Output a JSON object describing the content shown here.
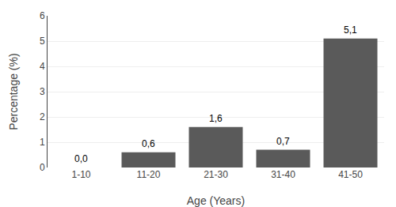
{
  "chart_data": {
    "type": "bar",
    "categories": [
      "1-10",
      "11-20",
      "21-30",
      "31-40",
      "41-50"
    ],
    "values": [
      0.0,
      0.6,
      1.6,
      0.7,
      5.1
    ],
    "value_labels": [
      "0,0",
      "0,6",
      "1,6",
      "0,7",
      "5,1"
    ],
    "color": "#5a5a5a",
    "xlabel": "Age (Years)",
    "ylabel": "Percentage (%)",
    "ylim": [
      0,
      6
    ],
    "yticks": [
      0,
      1,
      2,
      3,
      4,
      5,
      6
    ],
    "grid": true
  }
}
